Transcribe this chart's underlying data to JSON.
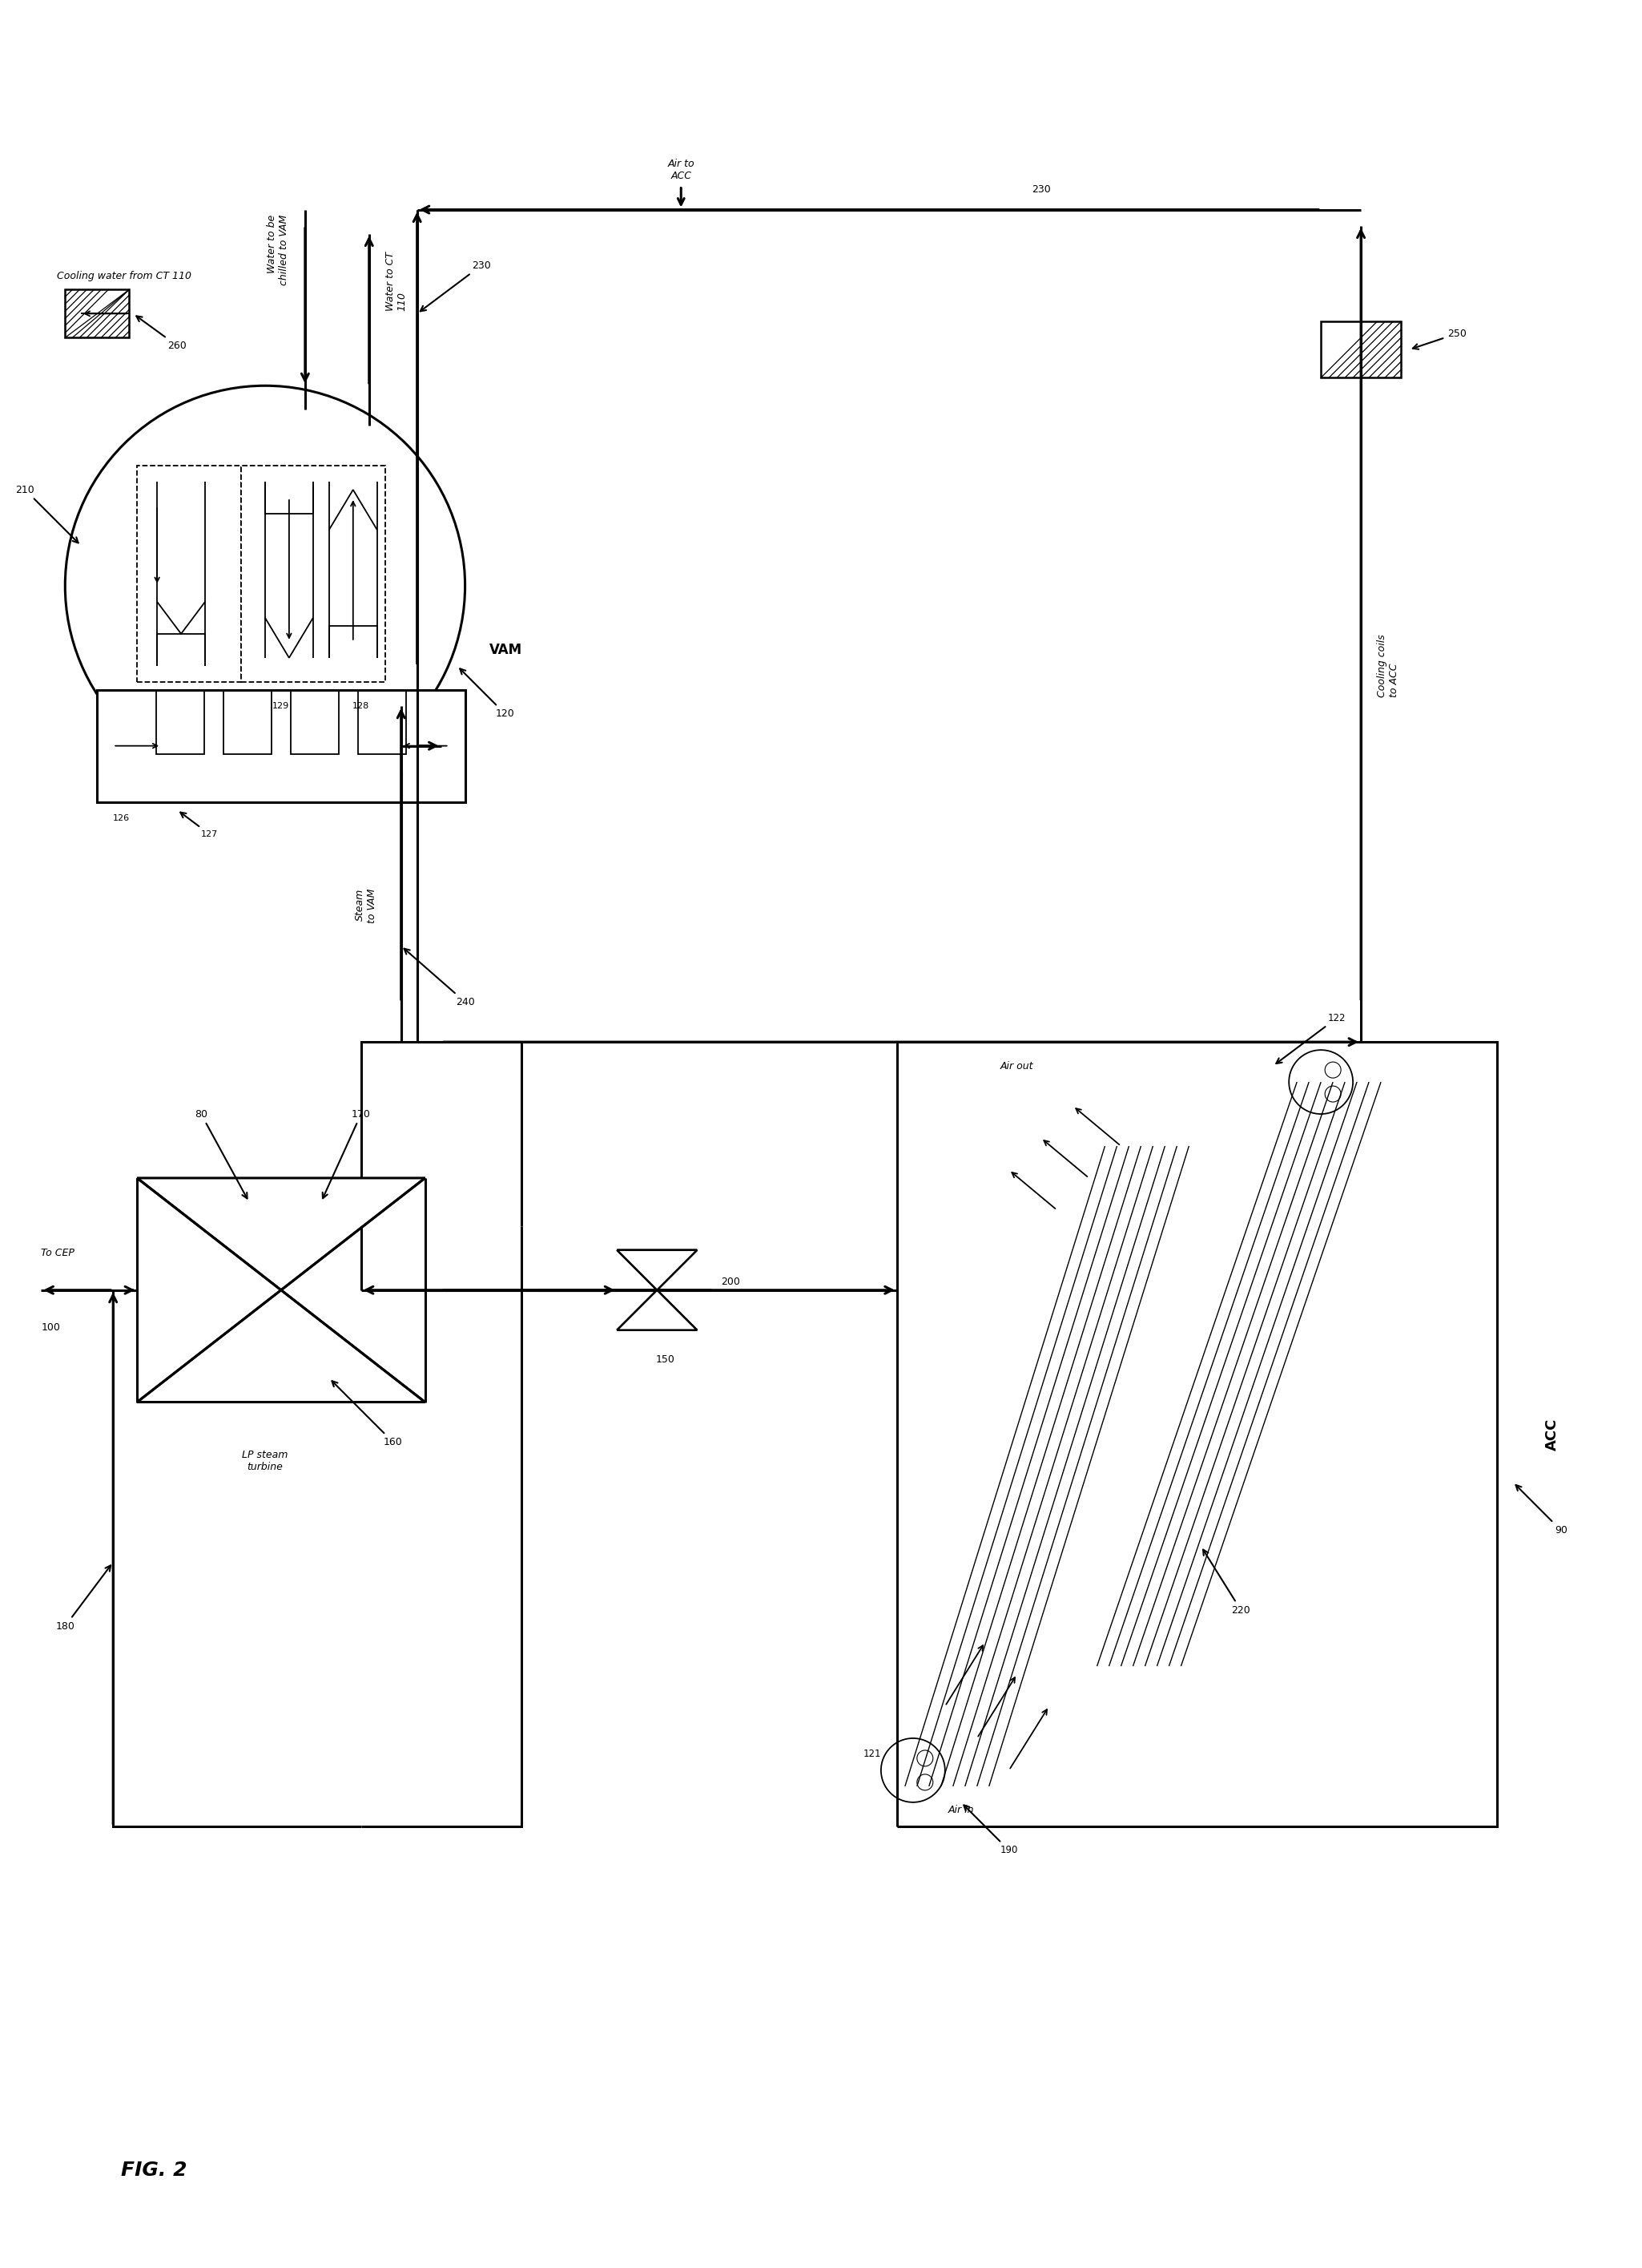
{
  "bg_color": "#ffffff",
  "line_color": "#000000",
  "fig_width": 20.5,
  "fig_height": 28.3,
  "title": "FIG. 2",
  "labels": {
    "fig_label": "FIG. 2",
    "lp_steam_turbine": "LP steam\nturbine",
    "to_cep": "To CEP",
    "steam_to_vam": "Steam\nto VAM",
    "air_out": "Air out",
    "air_in": "Air in",
    "air_to_acc": "Air to\nACC",
    "cooling_coils_to_acc": "Cooling coils\nto ACC",
    "water_to_ct": "Water to CT\n110",
    "water_to_be_chilled": "Water to be\nchilled to VAM",
    "cooling_water_from_ct": "Cooling water from CT 110",
    "vam": "VAM",
    "acc": "ACC"
  }
}
